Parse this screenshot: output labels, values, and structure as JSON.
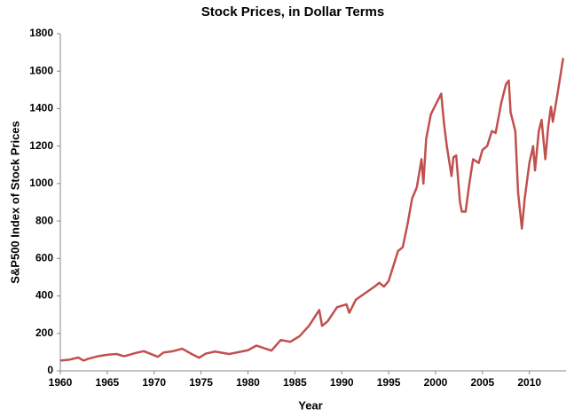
{
  "chart_data": {
    "type": "line",
    "title": "Stock Prices, in Dollar Terms",
    "x_label": "Year",
    "y_label": "S&P500 Index of Stock Prices",
    "x": [
      1960,
      1961,
      1961.9,
      1962.5,
      1963,
      1964,
      1965,
      1966,
      1966.8,
      1968,
      1968.9,
      1970.4,
      1971,
      1972,
      1973,
      1974,
      1974.8,
      1975.5,
      1976.5,
      1978,
      1979,
      1980,
      1980.9,
      1982.5,
      1983.5,
      1984.5,
      1985.5,
      1986.5,
      1987.6,
      1987.9,
      1988.5,
      1989.5,
      1990.5,
      1990.8,
      1991.5,
      1992.5,
      1993.5,
      1994,
      1994.5,
      1995,
      1996,
      1996.5,
      1997,
      1997.5,
      1998,
      1998.5,
      1998.7,
      1999,
      1999.5,
      2000,
      2000.6,
      2000.9,
      2001.2,
      2001.7,
      2001.9,
      2002.2,
      2002.6,
      2002.8,
      2003.2,
      2003.6,
      2004,
      2004.6,
      2005,
      2005.5,
      2006,
      2006.4,
      2007,
      2007.5,
      2007.8,
      2008,
      2008.5,
      2008.8,
      2009.2,
      2009.5,
      2010,
      2010.4,
      2010.6,
      2011,
      2011.3,
      2011.7,
      2012,
      2012.3,
      2012.5,
      2013,
      2013.6
    ],
    "values": [
      55,
      60,
      71,
      55,
      65,
      78,
      86,
      90,
      78,
      95,
      105,
      75,
      98,
      105,
      118,
      90,
      70,
      92,
      103,
      90,
      100,
      110,
      135,
      108,
      165,
      155,
      185,
      240,
      325,
      240,
      265,
      340,
      355,
      310,
      380,
      415,
      450,
      470,
      450,
      480,
      640,
      660,
      780,
      920,
      980,
      1130,
      1000,
      1240,
      1370,
      1420,
      1480,
      1320,
      1200,
      1040,
      1140,
      1150,
      900,
      850,
      850,
      1000,
      1130,
      1110,
      1180,
      1200,
      1280,
      1270,
      1430,
      1530,
      1550,
      1380,
      1280,
      950,
      760,
      920,
      1110,
      1200,
      1070,
      1280,
      1340,
      1130,
      1300,
      1410,
      1330,
      1480,
      1670
    ],
    "color": "#c0504d",
    "xlim": [
      1960,
      2014
    ],
    "xticks": [
      1960,
      1965,
      1970,
      1975,
      1980,
      1985,
      1990,
      1995,
      2000,
      2005,
      2010
    ],
    "ylim": [
      0,
      1800
    ],
    "yticks": [
      0,
      200,
      400,
      600,
      800,
      1000,
      1200,
      1400,
      1600,
      1800
    ]
  }
}
